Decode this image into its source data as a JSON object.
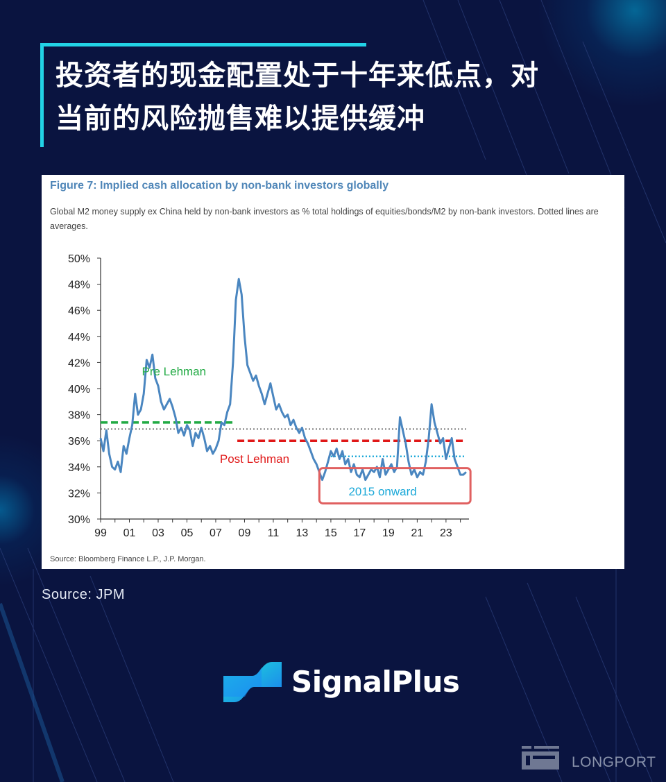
{
  "header": {
    "title_line1": "投资者的现金配置处于十年来低点，对",
    "title_line2": "当前的风险抛售难以提供缓冲"
  },
  "figure": {
    "title": "Figure 7: Implied cash allocation by non-bank investors globally",
    "subtitle": "Global M2 money supply  ex China  held by non-bank investors as % total holdings of equities/bonds/M2 by non-bank investors. Dotted lines are averages.",
    "source": "Source: Bloomberg Finance L.P., J.P. Morgan."
  },
  "chart_data": {
    "type": "line",
    "title": "Figure 7: Implied cash allocation by non-bank investors globally",
    "xlabel": "",
    "ylabel": "",
    "ylim": [
      30,
      50
    ],
    "xlim": [
      1999,
      2024.5
    ],
    "yticks": [
      30,
      32,
      34,
      36,
      38,
      40,
      42,
      44,
      46,
      48,
      50
    ],
    "ytick_labels": [
      "30%",
      "32%",
      "34%",
      "36%",
      "38%",
      "40%",
      "42%",
      "44%",
      "46%",
      "48%",
      "50%"
    ],
    "xticks": [
      1999,
      2001,
      2003,
      2005,
      2007,
      2009,
      2011,
      2013,
      2015,
      2017,
      2019,
      2021,
      2023
    ],
    "xtick_labels": [
      "99",
      "01",
      "03",
      "05",
      "07",
      "09",
      "11",
      "13",
      "15",
      "17",
      "19",
      "21",
      "23"
    ],
    "grid": false,
    "series": [
      {
        "color": "#4a86c0",
        "x": [
          1999.0,
          1999.2,
          1999.4,
          1999.6,
          1999.8,
          2000.0,
          2000.2,
          2000.4,
          2000.6,
          2000.8,
          2001.0,
          2001.2,
          2001.4,
          2001.6,
          2001.8,
          2002.0,
          2002.2,
          2002.4,
          2002.6,
          2002.8,
          2003.0,
          2003.2,
          2003.4,
          2003.6,
          2003.8,
          2004.0,
          2004.2,
          2004.4,
          2004.6,
          2004.8,
          2005.0,
          2005.2,
          2005.4,
          2005.6,
          2005.8,
          2006.0,
          2006.2,
          2006.4,
          2006.6,
          2006.8,
          2007.0,
          2007.2,
          2007.4,
          2007.6,
          2007.8,
          2008.0,
          2008.2,
          2008.4,
          2008.6,
          2008.8,
          2009.0,
          2009.2,
          2009.4,
          2009.6,
          2009.8,
          2010.0,
          2010.2,
          2010.4,
          2010.6,
          2010.8,
          2011.0,
          2011.2,
          2011.4,
          2011.6,
          2011.8,
          2012.0,
          2012.2,
          2012.4,
          2012.6,
          2012.8,
          2013.0,
          2013.2,
          2013.4,
          2013.6,
          2013.8,
          2014.0,
          2014.2,
          2014.4,
          2014.6,
          2014.8,
          2015.0,
          2015.2,
          2015.4,
          2015.6,
          2015.8,
          2016.0,
          2016.2,
          2016.4,
          2016.6,
          2016.8,
          2017.0,
          2017.2,
          2017.4,
          2017.6,
          2017.8,
          2018.0,
          2018.2,
          2018.4,
          2018.6,
          2018.8,
          2019.0,
          2019.2,
          2019.4,
          2019.6,
          2019.8,
          2020.0,
          2020.2,
          2020.4,
          2020.6,
          2020.8,
          2021.0,
          2021.2,
          2021.4,
          2021.6,
          2021.8,
          2022.0,
          2022.2,
          2022.4,
          2022.6,
          2022.8,
          2023.0,
          2023.2,
          2023.4,
          2023.6,
          2023.8,
          2024.0,
          2024.2,
          2024.4
        ],
        "values": [
          36.2,
          35.2,
          36.8,
          35.0,
          34.0,
          33.8,
          34.4,
          33.6,
          35.6,
          35.0,
          36.2,
          37.2,
          39.6,
          38.0,
          38.4,
          39.6,
          42.2,
          41.6,
          42.6,
          40.8,
          40.2,
          39.0,
          38.4,
          38.8,
          39.2,
          38.6,
          37.8,
          36.6,
          37.0,
          36.4,
          37.2,
          36.8,
          35.6,
          36.6,
          36.2,
          37.0,
          36.2,
          35.2,
          35.6,
          35.0,
          35.4,
          36.0,
          37.4,
          37.2,
          38.2,
          38.8,
          42.0,
          46.8,
          48.4,
          47.2,
          44.0,
          41.8,
          41.2,
          40.6,
          41.0,
          40.2,
          39.6,
          38.8,
          39.6,
          40.4,
          39.4,
          38.4,
          38.8,
          38.2,
          37.8,
          38.0,
          37.2,
          37.6,
          37.0,
          36.6,
          37.0,
          36.2,
          35.8,
          35.2,
          34.6,
          34.2,
          33.6,
          33.0,
          33.6,
          34.4,
          35.2,
          34.8,
          35.4,
          34.6,
          35.2,
          34.2,
          34.6,
          33.6,
          34.2,
          33.4,
          33.2,
          33.8,
          33.0,
          33.4,
          33.8,
          33.6,
          34.0,
          33.2,
          34.6,
          33.4,
          33.8,
          34.2,
          33.6,
          34.0,
          37.8,
          36.8,
          35.8,
          34.4,
          33.4,
          33.8,
          33.2,
          33.6,
          33.4,
          34.4,
          36.2,
          38.8,
          37.4,
          36.6,
          35.8,
          36.2,
          34.6,
          35.4,
          36.2,
          34.6,
          34.0,
          33.4,
          33.4,
          33.6
        ]
      }
    ],
    "reference_lines": [
      {
        "style": "dotted",
        "color": "#555555",
        "y": 36.9,
        "x": [
          1999,
          2024.4
        ]
      },
      {
        "style": "dashed",
        "color": "#22aa44",
        "y": 37.4,
        "x": [
          1999,
          2008.4
        ]
      },
      {
        "style": "dashed",
        "color": "#e01818",
        "y": 36.0,
        "x": [
          2008.5,
          2024.4
        ]
      },
      {
        "style": "dotted",
        "color": "#1aa8d8",
        "y": 34.8,
        "x": [
          2015.0,
          2024.4
        ]
      }
    ],
    "annotations": [
      {
        "text": "Pre Lehman",
        "color": "#22aa44",
        "x": 2004.1,
        "y": 41.0
      },
      {
        "text": "Post Lehman",
        "color": "#e01818",
        "x": 2009.7,
        "y": 34.3
      },
      {
        "text": "2015 onward",
        "color": "#1aa8d8",
        "x": 2018.6,
        "y": 31.8
      }
    ],
    "highlight_box": {
      "color": "#e06060",
      "x": [
        2014.2,
        2024.7
      ],
      "y": [
        31.2,
        33.9
      ]
    }
  },
  "footer": {
    "source_text": "Source: JPM",
    "brand_name": "SignalPlus",
    "watermark_name": "LONGPORT"
  },
  "colors": {
    "background": "#0a1440",
    "accent": "#22d3e6",
    "line": "#4a86c0"
  }
}
